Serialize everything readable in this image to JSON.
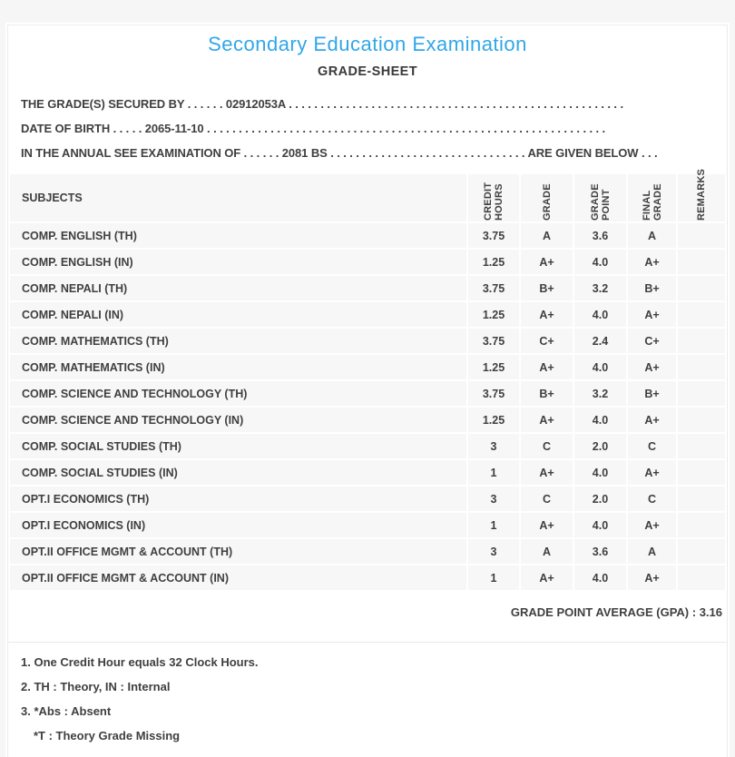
{
  "header": {
    "title": "Secondary Education Examination",
    "subtitle": "GRADE-SHEET",
    "title_color": "#31a6e9"
  },
  "info": {
    "lines": [
      {
        "label": "THE GRADE(S) SECURED BY",
        "leader": " . . . . . . ",
        "value": "02912053A",
        "trailer": " . . . . . . . . . . . . . . . . . . . . . . . . . . . . . . . . . . . . . . . . . . . . . . . . . . . . .",
        "suffix": ""
      },
      {
        "label": "DATE OF BIRTH",
        "leader": " . . . . . ",
        "value": "2065-11-10",
        "trailer": " . . . . . . . . . . . . . . . . . . . . . . . . . . . . . . . . . . . . . . . . . . . . . . . . . . . . . . . . . . . . . . .",
        "suffix": ""
      },
      {
        "label": "IN THE ANNUAL SEE EXAMINATION OF",
        "leader": " . . . . . . ",
        "value": "2081 BS",
        "trailer": " . . . . . . . . . . . . . . . . . . . . . . . . . . . . . . . ",
        "suffix": "ARE GIVEN BELOW . . ."
      }
    ]
  },
  "table": {
    "columns": [
      "SUBJECTS",
      "CREDIT HOURS",
      "GRADE",
      "GRADE POINT",
      "FINAL GRADE",
      "REMARKS"
    ],
    "rows": [
      {
        "subject": "COMP. ENGLISH (TH)",
        "credit": "3.75",
        "grade": "A",
        "point": "3.6",
        "final": "A",
        "remarks": ""
      },
      {
        "subject": "COMP. ENGLISH (IN)",
        "credit": "1.25",
        "grade": "A+",
        "point": "4.0",
        "final": "A+",
        "remarks": ""
      },
      {
        "subject": "COMP. NEPALI (TH)",
        "credit": "3.75",
        "grade": "B+",
        "point": "3.2",
        "final": "B+",
        "remarks": ""
      },
      {
        "subject": "COMP. NEPALI (IN)",
        "credit": "1.25",
        "grade": "A+",
        "point": "4.0",
        "final": "A+",
        "remarks": ""
      },
      {
        "subject": "COMP. MATHEMATICS (TH)",
        "credit": "3.75",
        "grade": "C+",
        "point": "2.4",
        "final": "C+",
        "remarks": ""
      },
      {
        "subject": "COMP. MATHEMATICS (IN)",
        "credit": "1.25",
        "grade": "A+",
        "point": "4.0",
        "final": "A+",
        "remarks": ""
      },
      {
        "subject": "COMP. SCIENCE AND TECHNOLOGY (TH)",
        "credit": "3.75",
        "grade": "B+",
        "point": "3.2",
        "final": "B+",
        "remarks": ""
      },
      {
        "subject": "COMP. SCIENCE AND TECHNOLOGY (IN)",
        "credit": "1.25",
        "grade": "A+",
        "point": "4.0",
        "final": "A+",
        "remarks": ""
      },
      {
        "subject": "COMP. SOCIAL STUDIES (TH)",
        "credit": "3",
        "grade": "C",
        "point": "2.0",
        "final": "C",
        "remarks": ""
      },
      {
        "subject": "COMP. SOCIAL STUDIES (IN)",
        "credit": "1",
        "grade": "A+",
        "point": "4.0",
        "final": "A+",
        "remarks": ""
      },
      {
        "subject": "OPT.I ECONOMICS (TH)",
        "credit": "3",
        "grade": "C",
        "point": "2.0",
        "final": "C",
        "remarks": ""
      },
      {
        "subject": "OPT.I ECONOMICS (IN)",
        "credit": "1",
        "grade": "A+",
        "point": "4.0",
        "final": "A+",
        "remarks": ""
      },
      {
        "subject": "OPT.II OFFICE MGMT & ACCOUNT (TH)",
        "credit": "3",
        "grade": "A",
        "point": "3.6",
        "final": "A",
        "remarks": ""
      },
      {
        "subject": "OPT.II OFFICE MGMT & ACCOUNT (IN)",
        "credit": "1",
        "grade": "A+",
        "point": "4.0",
        "final": "A+",
        "remarks": ""
      }
    ],
    "gpa_label": "GRADE POINT AVERAGE (GPA) :",
    "gpa_value": "3.16"
  },
  "notes": {
    "line1": "1. One Credit Hour equals 32 Clock Hours.",
    "line2": "2. TH : Theory, IN : Internal",
    "line3": "3. *Abs : Absent",
    "line4": "*T : Theory Grade Missing"
  }
}
